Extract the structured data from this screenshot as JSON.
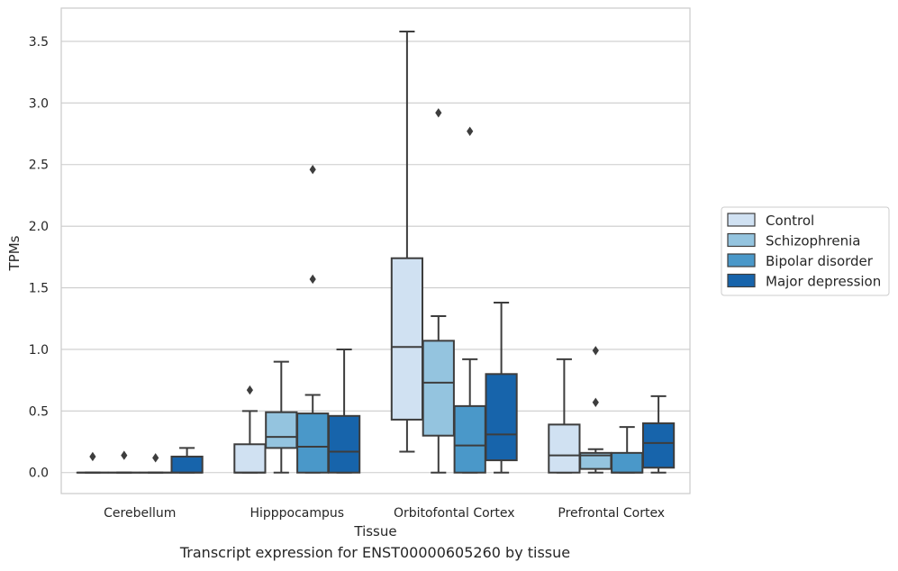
{
  "caption": "Transcript expression for ENST00000605260 by tissue",
  "chart_data": {
    "type": "box",
    "xlabel": "Tissue",
    "ylabel": "TPMs",
    "ylim": [
      -0.17,
      3.77
    ],
    "yticks": [
      0.0,
      0.5,
      1.0,
      1.5,
      2.0,
      2.5,
      3.0,
      3.5
    ],
    "ytick_labels": [
      "0.0",
      "0.5",
      "1.0",
      "1.5",
      "2.0",
      "2.5",
      "3.0",
      "3.5"
    ],
    "grid": "horizontal",
    "legend_position": "right",
    "categories": [
      "Cerebellum",
      "Hipppocampus",
      "Orbitofontal Cortex",
      "Prefrontal Cortex"
    ],
    "series": [
      {
        "name": "Control",
        "color": "#d0e1f2",
        "boxes": [
          {
            "whislo": 0.0,
            "q1": 0.0,
            "med": 0.0,
            "q3": 0.0,
            "whishi": 0.0,
            "fliers": [
              0.13
            ]
          },
          {
            "whislo": 0.0,
            "q1": 0.0,
            "med": 0.0,
            "q3": 0.23,
            "whishi": 0.5,
            "fliers": [
              0.67
            ]
          },
          {
            "whislo": 0.17,
            "q1": 0.43,
            "med": 1.02,
            "q3": 1.74,
            "whishi": 3.58,
            "fliers": []
          },
          {
            "whislo": 0.0,
            "q1": 0.0,
            "med": 0.14,
            "q3": 0.39,
            "whishi": 0.92,
            "fliers": []
          }
        ]
      },
      {
        "name": "Schizophrenia",
        "color": "#94c4df",
        "boxes": [
          {
            "whislo": 0.0,
            "q1": 0.0,
            "med": 0.0,
            "q3": 0.0,
            "whishi": 0.0,
            "fliers": [
              0.14
            ]
          },
          {
            "whislo": 0.0,
            "q1": 0.2,
            "med": 0.29,
            "q3": 0.49,
            "whishi": 0.9,
            "fliers": []
          },
          {
            "whislo": 0.0,
            "q1": 0.3,
            "med": 0.73,
            "q3": 1.07,
            "whishi": 1.27,
            "fliers": [
              2.92
            ]
          },
          {
            "whislo": 0.0,
            "q1": 0.03,
            "med": 0.14,
            "q3": 0.16,
            "whishi": 0.19,
            "fliers": [
              0.57,
              0.99
            ]
          }
        ]
      },
      {
        "name": "Bipolar disorder",
        "color": "#4a98c9",
        "boxes": [
          {
            "whislo": 0.0,
            "q1": 0.0,
            "med": 0.0,
            "q3": 0.0,
            "whishi": 0.0,
            "fliers": [
              0.12
            ]
          },
          {
            "whislo": 0.0,
            "q1": 0.0,
            "med": 0.21,
            "q3": 0.48,
            "whishi": 0.63,
            "fliers": [
              1.57,
              2.46
            ]
          },
          {
            "whislo": 0.0,
            "q1": 0.0,
            "med": 0.22,
            "q3": 0.54,
            "whishi": 0.92,
            "fliers": [
              2.77
            ]
          },
          {
            "whislo": 0.0,
            "q1": 0.0,
            "med": 0.0,
            "q3": 0.16,
            "whishi": 0.37,
            "fliers": []
          }
        ]
      },
      {
        "name": "Major depression",
        "color": "#1764ab",
        "boxes": [
          {
            "whislo": 0.0,
            "q1": 0.0,
            "med": 0.0,
            "q3": 0.13,
            "whishi": 0.2,
            "fliers": []
          },
          {
            "whislo": 0.0,
            "q1": 0.0,
            "med": 0.17,
            "q3": 0.46,
            "whishi": 1.0,
            "fliers": []
          },
          {
            "whislo": 0.0,
            "q1": 0.1,
            "med": 0.31,
            "q3": 0.8,
            "whishi": 1.38,
            "fliers": []
          },
          {
            "whislo": 0.0,
            "q1": 0.04,
            "med": 0.24,
            "q3": 0.4,
            "whishi": 0.62,
            "fliers": []
          }
        ]
      }
    ]
  }
}
